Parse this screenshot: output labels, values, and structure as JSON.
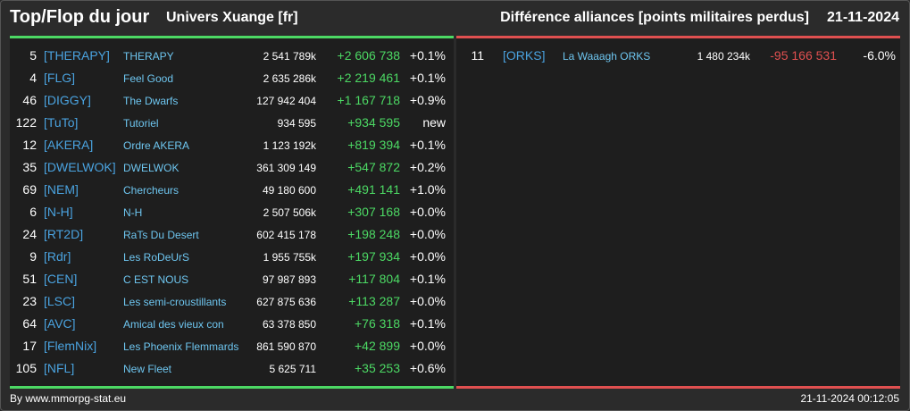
{
  "header": {
    "title": "Top/Flop du jour",
    "universe": "Univers Xuange [fr]",
    "subtitle": "Différence alliances [points militaires perdus]",
    "date": "21-11-2024"
  },
  "top": [
    {
      "rank": "5",
      "tag": "[THERAPY]",
      "name": "THERAPY",
      "points": "2 541 789k",
      "diff": "+2 606 738",
      "pct": "+0.1%"
    },
    {
      "rank": "4",
      "tag": "[FLG]",
      "name": "Feel Good",
      "points": "2 635 286k",
      "diff": "+2 219 461",
      "pct": "+0.1%"
    },
    {
      "rank": "46",
      "tag": "[DIGGY]",
      "name": "The Dwarfs",
      "points": "127 942 404",
      "diff": "+1 167 718",
      "pct": "+0.9%"
    },
    {
      "rank": "122",
      "tag": "[TuTo]",
      "name": "Tutoriel",
      "points": "934 595",
      "diff": "+934 595",
      "pct": "new"
    },
    {
      "rank": "12",
      "tag": "[AKERA]",
      "name": "Ordre AKERA",
      "points": "1 123 192k",
      "diff": "+819 394",
      "pct": "+0.1%"
    },
    {
      "rank": "35",
      "tag": "[DWELWOK]",
      "name": "DWELWOK",
      "points": "361 309 149",
      "diff": "+547 872",
      "pct": "+0.2%"
    },
    {
      "rank": "69",
      "tag": "[NEM]",
      "name": "Chercheurs",
      "points": "49 180 600",
      "diff": "+491 141",
      "pct": "+1.0%"
    },
    {
      "rank": "6",
      "tag": "[N-H]",
      "name": "N-H",
      "points": "2 507 506k",
      "diff": "+307 168",
      "pct": "+0.0%"
    },
    {
      "rank": "24",
      "tag": "[RT2D]",
      "name": "RaTs Du Desert",
      "points": "602 415 178",
      "diff": "+198 248",
      "pct": "+0.0%"
    },
    {
      "rank": "9",
      "tag": "[Rdr]",
      "name": "Les RoDeUrS",
      "points": "1 955 755k",
      "diff": "+197 934",
      "pct": "+0.0%"
    },
    {
      "rank": "51",
      "tag": "[CEN]",
      "name": "C EST NOUS",
      "points": "97 987 893",
      "diff": "+117 804",
      "pct": "+0.1%"
    },
    {
      "rank": "23",
      "tag": "[LSC]",
      "name": "Les semi-croustillants",
      "points": "627 875 636",
      "diff": "+113 287",
      "pct": "+0.0%"
    },
    {
      "rank": "64",
      "tag": "[AVC]",
      "name": "Amical des vieux con",
      "points": "63 378 850",
      "diff": "+76 318",
      "pct": "+0.1%"
    },
    {
      "rank": "17",
      "tag": "[FlemNix]",
      "name": "Les Phoenix Flemmards",
      "points": "861 590 870",
      "diff": "+42 899",
      "pct": "+0.0%"
    },
    {
      "rank": "105",
      "tag": "[NFL]",
      "name": "New Fleet",
      "points": "5 625 711",
      "diff": "+35 253",
      "pct": "+0.6%"
    }
  ],
  "flop": [
    {
      "rank": "11",
      "tag": "[ORKS]",
      "name": "La Waaagh ORKS",
      "points": "1 480 234k",
      "diff": "-95 166 531",
      "pct": "-6.0%"
    }
  ],
  "footer": {
    "source": "By www.mmorpg-stat.eu",
    "timestamp": "21-11-2024 00:12:05"
  },
  "colors": {
    "background": "#2b2b2b",
    "panel": "#1e1e1e",
    "positive": "#4cd964",
    "negative": "#e05050",
    "tag": "#4aa3e0",
    "name": "#6ec6f0"
  }
}
